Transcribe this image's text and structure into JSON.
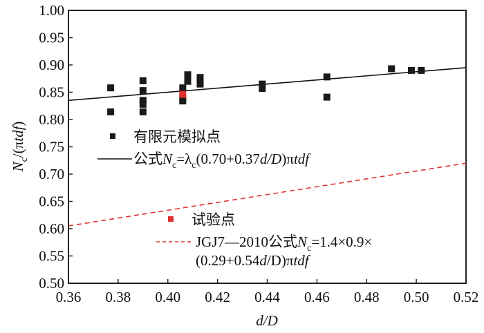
{
  "chart_data": {
    "type": "scatter",
    "title": "",
    "xlabel": "d/D",
    "ylabel": "Nc/(πtdf)",
    "xlim": [
      0.36,
      0.52
    ],
    "ylim": [
      0.5,
      1.0
    ],
    "xticks": [
      "0.36",
      "0.38",
      "0.40",
      "0.42",
      "0.44",
      "0.46",
      "0.48",
      "0.50",
      "0.52"
    ],
    "yticks": [
      "0.50",
      "0.55",
      "0.60",
      "0.65",
      "0.70",
      "0.75",
      "0.80",
      "0.85",
      "0.90",
      "0.95",
      "1.00"
    ],
    "grid": false,
    "series": [
      {
        "name": "有限元模拟点",
        "kind": "scatter",
        "marker": "square",
        "color": "#1a1a1a",
        "points": [
          [
            0.377,
            0.858
          ],
          [
            0.377,
            0.814
          ],
          [
            0.39,
            0.871
          ],
          [
            0.39,
            0.853
          ],
          [
            0.39,
            0.835
          ],
          [
            0.39,
            0.828
          ],
          [
            0.39,
            0.814
          ],
          [
            0.406,
            0.858
          ],
          [
            0.406,
            0.84
          ],
          [
            0.406,
            0.834
          ],
          [
            0.408,
            0.882
          ],
          [
            0.408,
            0.87
          ],
          [
            0.413,
            0.877
          ],
          [
            0.413,
            0.865
          ],
          [
            0.438,
            0.865
          ],
          [
            0.438,
            0.857
          ],
          [
            0.464,
            0.878
          ],
          [
            0.464,
            0.841
          ],
          [
            0.49,
            0.893
          ],
          [
            0.498,
            0.89
          ],
          [
            0.502,
            0.89
          ]
        ]
      },
      {
        "name": "试验点",
        "kind": "scatter",
        "marker": "square",
        "color": "#e03030",
        "points": [
          [
            0.406,
            0.846
          ]
        ]
      },
      {
        "name": "公式Nc=λc(0.70+0.37d/D)πtdf",
        "kind": "line",
        "style": "solid",
        "color": "#111111",
        "points": [
          [
            0.36,
            0.835
          ],
          [
            0.52,
            0.895
          ]
        ]
      },
      {
        "name": "JGJ7—2010公式Nc=1.4×0.9×(0.29+0.54d/D)πtdf",
        "kind": "line",
        "style": "dashed",
        "color": "#e03030",
        "points": [
          [
            0.36,
            0.605
          ],
          [
            0.52,
            0.72
          ]
        ]
      }
    ],
    "legend": {
      "placement": "inside-left",
      "fem": "有限元模拟点",
      "formula_prefix": "公式",
      "formula_N": "N",
      "formula_c": "c",
      "formula_eq": "=λ",
      "formula_c2": "c",
      "formula_body": "(0.70+0.37",
      "formula_dD": "d",
      "formula_slash": "/D",
      "formula_end": ")π",
      "formula_tdf": "tdf",
      "test": "试验点",
      "jgj_prefix": "JGJ7—2010公式",
      "jgj_N": "N",
      "jgj_c": "c",
      "jgj_eq": "=1.4×0.9×",
      "jgj_line2_a": "(0.29+0.54",
      "jgj_line2_d": "d",
      "jgj_line2_b": "/D)π",
      "jgj_line2_tdf": "tdf"
    },
    "ylabel_parts": {
      "N": "N",
      "c": "c",
      "rest": "/(π",
      "tdf": "tdf",
      "close": ")"
    },
    "xlabel_parts": {
      "d": "d",
      "rest": "/D"
    }
  }
}
